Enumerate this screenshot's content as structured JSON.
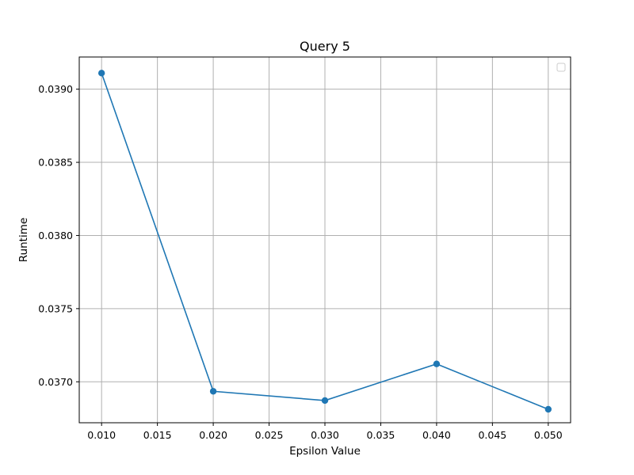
{
  "chart_data": {
    "type": "line",
    "title": "Query 5",
    "xlabel": "Epsilon Value",
    "ylabel": "Runtime",
    "x": [
      0.01,
      0.02,
      0.03,
      0.04,
      0.05
    ],
    "series": [
      {
        "values": [
          0.03911,
          0.036935,
          0.036872,
          0.037122,
          0.036812
        ],
        "color": "#1f77b4",
        "marker": "circle"
      }
    ],
    "xlim": [
      0.008,
      0.052
    ],
    "ylim": [
      0.03672,
      0.03922
    ],
    "xticks": [
      0.01,
      0.015,
      0.02,
      0.025,
      0.03,
      0.035,
      0.04,
      0.045,
      0.05
    ],
    "xtick_labels": [
      "0.010",
      "0.015",
      "0.020",
      "0.025",
      "0.030",
      "0.035",
      "0.040",
      "0.045",
      "0.050"
    ],
    "yticks": [
      0.037,
      0.0375,
      0.038,
      0.0385,
      0.039
    ],
    "ytick_labels": [
      "0.0370",
      "0.0375",
      "0.0380",
      "0.0385",
      "0.0390"
    ],
    "grid": true,
    "legend": {
      "placement": "top-right",
      "entries": []
    }
  }
}
